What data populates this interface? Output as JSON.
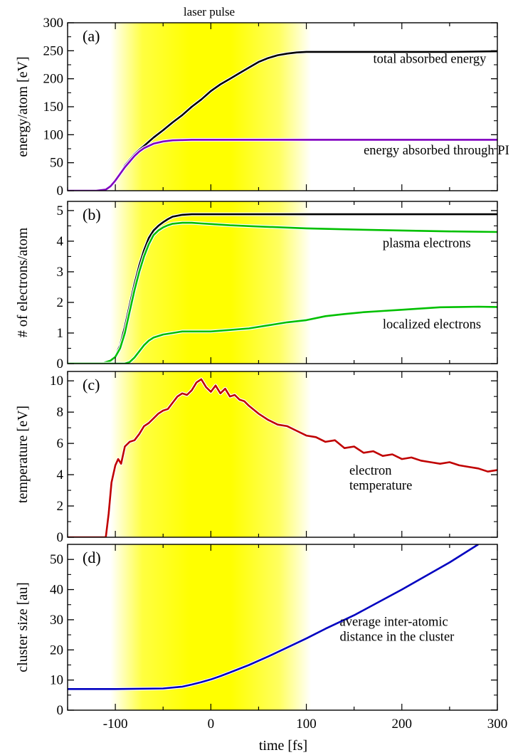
{
  "chart_data": {
    "type": "line",
    "top_label": "laser pulse",
    "xlabel": "time [fs]",
    "xlim": [
      -150,
      300
    ],
    "x_ticks": [
      -100,
      0,
      100,
      200,
      300
    ],
    "x_tick_labels": [
      "-100",
      "0",
      "100",
      "200",
      "300"
    ],
    "laser_pulse_center_fs": 0,
    "colors": {
      "laser_yellow": "#ffff00",
      "total": "#000000",
      "pi": "#8000c0",
      "electrons": "#00c000",
      "temperature": "#c00000",
      "size": "#0000c0"
    },
    "panels": [
      {
        "letter": "(a)",
        "ylabel": "energy/atom [eV]",
        "ylim": [
          0,
          300
        ],
        "y_ticks": [
          0,
          50,
          100,
          150,
          200,
          250,
          300
        ],
        "y_tick_labels": [
          "0",
          "50",
          "100",
          "150",
          "200",
          "250",
          "300"
        ],
        "series": [
          {
            "color": "#000000",
            "x": [
              -150,
              -120,
              -110,
              -105,
              -100,
              -95,
              -90,
              -85,
              -80,
              -75,
              -70,
              -60,
              -50,
              -40,
              -30,
              -20,
              -10,
              0,
              10,
              20,
              30,
              40,
              50,
              60,
              70,
              80,
              90,
              100,
              120,
              150,
              200,
              250,
              300
            ],
            "y": [
              0,
              0,
              2,
              8,
              18,
              32,
              45,
              55,
              65,
              73,
              80,
              95,
              108,
              122,
              135,
              150,
              163,
              178,
              190,
              200,
              210,
              220,
              230,
              237,
              242,
              245,
              247,
              248,
              248,
              248,
              248,
              248,
              249
            ]
          },
          {
            "color": "#8000c0",
            "x": [
              -150,
              -120,
              -110,
              -105,
              -100,
              -95,
              -90,
              -85,
              -80,
              -75,
              -70,
              -60,
              -50,
              -40,
              -30,
              -20,
              -10,
              0,
              50,
              100,
              150,
              200,
              250,
              300
            ],
            "y": [
              0,
              0,
              2,
              8,
              18,
              30,
              42,
              52,
              62,
              70,
              76,
              84,
              88,
              90,
              90.5,
              91,
              91,
              91,
              91,
              91,
              91,
              91,
              91,
              91
            ]
          }
        ],
        "annotations": [
          {
            "lines": [
              "total absorbed energy"
            ],
            "x": 170,
            "y": 228
          },
          {
            "lines": [
              "energy absorbed through PI"
            ],
            "x": 160,
            "y": 65
          }
        ]
      },
      {
        "letter": "(b)",
        "ylabel": "# of electrons/atom",
        "ylim": [
          0,
          5.3
        ],
        "y_ticks": [
          0,
          1,
          2,
          3,
          4,
          5
        ],
        "y_tick_labels": [
          "0",
          "1",
          "2",
          "3",
          "4",
          "5"
        ],
        "series": [
          {
            "color": "#000000",
            "x": [
              -150,
              -115,
              -110,
              -105,
              -100,
              -95,
              -90,
              -85,
              -80,
              -75,
              -70,
              -65,
              -60,
              -55,
              -50,
              -45,
              -40,
              -30,
              -20,
              0,
              50,
              100,
              200,
              300
            ],
            "y": [
              0,
              0,
              0.05,
              0.1,
              0.25,
              0.6,
              1.2,
              1.9,
              2.6,
              3.2,
              3.7,
              4.1,
              4.35,
              4.5,
              4.62,
              4.72,
              4.8,
              4.86,
              4.88,
              4.88,
              4.88,
              4.88,
              4.88,
              4.88
            ]
          },
          {
            "color": "#00c000",
            "x": [
              -150,
              -115,
              -110,
              -105,
              -100,
              -95,
              -90,
              -85,
              -80,
              -75,
              -70,
              -65,
              -60,
              -55,
              -50,
              -45,
              -40,
              -30,
              -20,
              -10,
              0,
              20,
              50,
              100,
              150,
              200,
              250,
              300
            ],
            "y": [
              0,
              0,
              0.05,
              0.1,
              0.22,
              0.5,
              1.0,
              1.7,
              2.4,
              3.0,
              3.5,
              3.9,
              4.2,
              4.35,
              4.45,
              4.52,
              4.57,
              4.6,
              4.6,
              4.58,
              4.56,
              4.52,
              4.48,
              4.42,
              4.38,
              4.35,
              4.32,
              4.3
            ]
          },
          {
            "color": "#00c000",
            "x": [
              -150,
              -90,
              -85,
              -80,
              -75,
              -70,
              -65,
              -60,
              -50,
              -40,
              -30,
              -20,
              -10,
              0,
              20,
              40,
              60,
              80,
              100,
              120,
              140,
              160,
              180,
              200,
              220,
              240,
              260,
              280,
              300
            ],
            "y": [
              0,
              0,
              0.05,
              0.2,
              0.4,
              0.6,
              0.75,
              0.85,
              0.95,
              1.0,
              1.05,
              1.05,
              1.05,
              1.05,
              1.1,
              1.15,
              1.25,
              1.35,
              1.42,
              1.55,
              1.62,
              1.68,
              1.72,
              1.76,
              1.8,
              1.84,
              1.85,
              1.86,
              1.85
            ]
          }
        ],
        "annotations": [
          {
            "lines": [
              "plasma electrons"
            ],
            "x": 180,
            "y": 3.8
          },
          {
            "lines": [
              "localized electrons"
            ],
            "x": 180,
            "y": 1.15
          }
        ]
      },
      {
        "letter": "(c)",
        "ylabel": "temperature [eV]",
        "ylim": [
          0,
          10.6
        ],
        "y_ticks": [
          0,
          2,
          4,
          6,
          8,
          10
        ],
        "y_tick_labels": [
          "0",
          "2",
          "4",
          "6",
          "8",
          "10"
        ],
        "series": [
          {
            "color": "#c00000",
            "x": [
              -150,
              -120,
              -110,
              -107,
              -104,
              -100,
              -97,
              -94,
              -90,
              -85,
              -80,
              -75,
              -70,
              -65,
              -60,
              -55,
              -50,
              -45,
              -40,
              -35,
              -30,
              -25,
              -20,
              -15,
              -10,
              -5,
              0,
              5,
              10,
              15,
              20,
              25,
              30,
              35,
              40,
              50,
              60,
              70,
              80,
              90,
              100,
              110,
              120,
              130,
              140,
              150,
              160,
              170,
              180,
              190,
              200,
              210,
              220,
              230,
              240,
              250,
              260,
              270,
              280,
              290,
              300
            ],
            "y": [
              0,
              0,
              0,
              1.5,
              3.5,
              4.6,
              5.0,
              4.7,
              5.8,
              6.1,
              6.2,
              6.6,
              7.1,
              7.3,
              7.6,
              7.9,
              8.1,
              8.2,
              8.6,
              9.0,
              9.2,
              9.1,
              9.4,
              9.9,
              10.1,
              9.6,
              9.3,
              9.7,
              9.2,
              9.5,
              9.0,
              9.1,
              8.8,
              8.7,
              8.4,
              7.9,
              7.5,
              7.2,
              7.1,
              6.8,
              6.5,
              6.4,
              6.1,
              6.2,
              5.7,
              5.8,
              5.4,
              5.5,
              5.2,
              5.3,
              5.0,
              5.1,
              4.9,
              4.8,
              4.7,
              4.8,
              4.6,
              4.5,
              4.4,
              4.2,
              4.3
            ]
          }
        ],
        "annotations": [
          {
            "lines": [
              "electron",
              "temperature"
            ],
            "x": 145,
            "y": 4.0
          }
        ]
      },
      {
        "letter": "(d)",
        "ylabel": "cluster size [au]",
        "ylim": [
          0,
          55
        ],
        "y_ticks": [
          0,
          10,
          20,
          30,
          40,
          50
        ],
        "y_tick_labels": [
          "0",
          "10",
          "20",
          "30",
          "40",
          "50"
        ],
        "series": [
          {
            "color": "#0000c0",
            "x": [
              -150,
              -100,
              -50,
              -30,
              -20,
              -10,
              0,
              10,
              20,
              40,
              60,
              80,
              100,
              120,
              150,
              200,
              250,
              280
            ],
            "y": [
              7,
              7,
              7.2,
              7.8,
              8.5,
              9.3,
              10.2,
              11.3,
              12.5,
              15.0,
              17.8,
              20.8,
              23.8,
              27.0,
              31.5,
              40.0,
              49.0,
              55.0
            ]
          }
        ],
        "annotations": [
          {
            "lines": [
              "average inter-atomic",
              "distance in the cluster"
            ],
            "x": 135,
            "y": 28
          }
        ]
      }
    ]
  }
}
